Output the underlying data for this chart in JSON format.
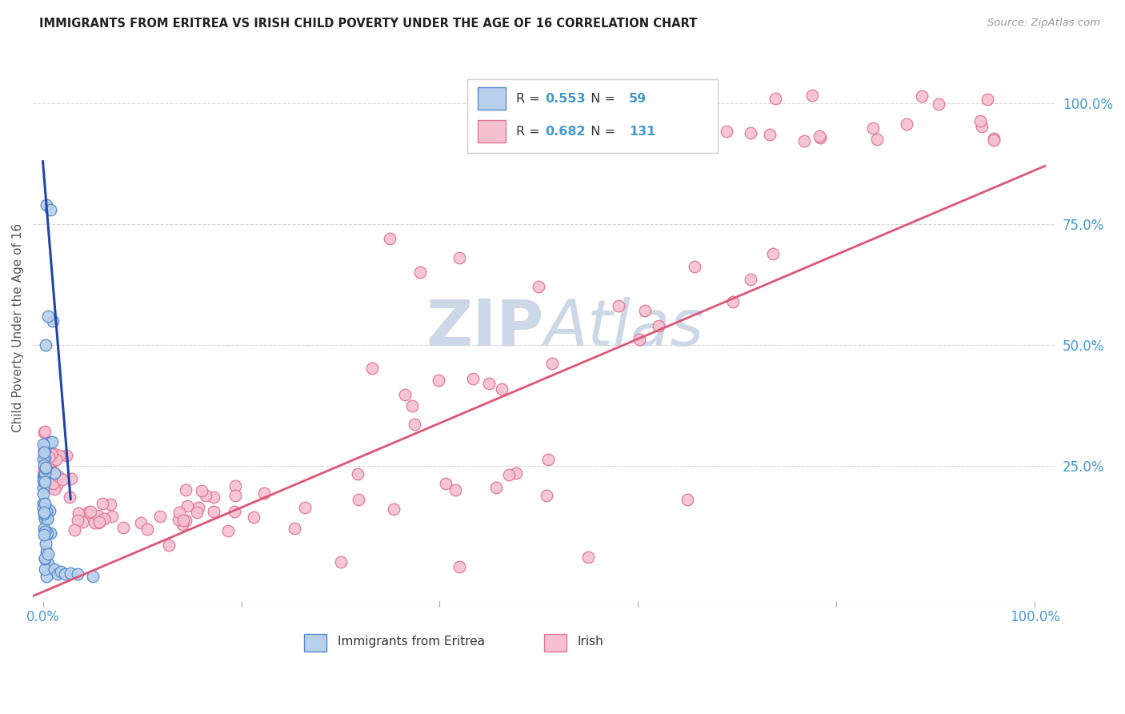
{
  "title": "IMMIGRANTS FROM ERITREA VS IRISH CHILD POVERTY UNDER THE AGE OF 16 CORRELATION CHART",
  "source": "Source: ZipAtlas.com",
  "ylabel": "Child Poverty Under the Age of 16",
  "legend_eritrea_label": "Immigrants from Eritrea",
  "legend_irish_label": "Irish",
  "eritrea_R": "0.553",
  "eritrea_N": "59",
  "irish_R": "0.682",
  "irish_N": "131",
  "blue_fill": "#b8d0ea",
  "blue_edge": "#5588cc",
  "pink_fill": "#f5c0d0",
  "pink_edge": "#e07898",
  "blue_line_color": "#2244aa",
  "blue_dash_color": "#8899cc",
  "pink_line_color": "#dd5577",
  "watermark_color": "#ccd8e8",
  "title_color": "#222222",
  "axis_label_color": "#4499cc",
  "grid_color": "#cccccc",
  "background_color": "#ffffff",
  "figsize": [
    14.06,
    8.92
  ],
  "dpi": 100
}
